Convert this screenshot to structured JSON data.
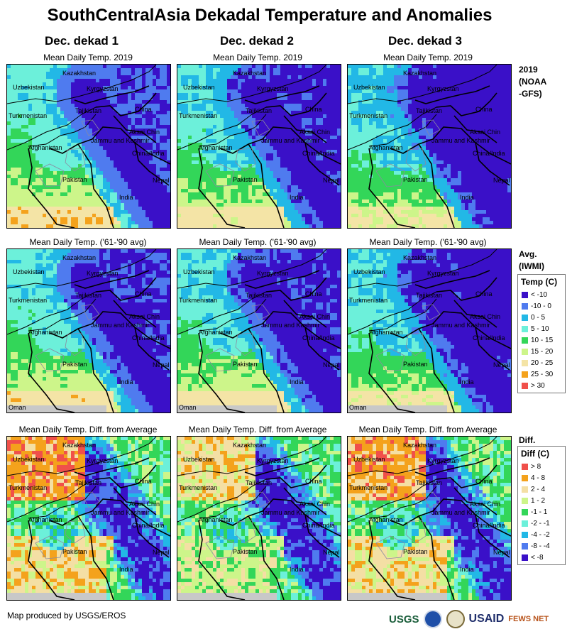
{
  "title": "SouthCentralAsia Dekadal Temperature and Anomalies",
  "columns": [
    "Dec. dekad 1",
    "Dec. dekad 2",
    "Dec. dekad 3"
  ],
  "row_captions": {
    "current": "Mean Daily Temp. 2019",
    "average": "Mean Daily Temp. ('61-'90 avg)",
    "difference": "Mean Daily Temp. Diff. from Average"
  },
  "side_labels": {
    "current_l1": "2019",
    "current_l2": "(NOAA",
    "current_l3": "-GFS)",
    "average_l1": "Avg.",
    "average_l2": "(IWMI)",
    "difference_l1": "Diff."
  },
  "map_labels": {
    "kazakhstan": "Kazakhstan",
    "uzbekistan": "Uzbekistan",
    "kyrgyzstan": "Kyrgyzstan",
    "turkmenistan": "Turkmenistan",
    "tajikistan": "Tajikistan",
    "china": "China",
    "aksai_chin": "Aksai Chin",
    "jammu_kashmir": "Jammu and Kashmir",
    "afghanistan": "Afghanistan",
    "china_india": "China/India",
    "pakistan": "Pakistan",
    "nepal": "Nepal",
    "india": "India",
    "oman": "Oman"
  },
  "temp_legend": {
    "title": "Temp (C)",
    "items": [
      {
        "label": "< -10",
        "color": "#3a10c8"
      },
      {
        "label": "-10 - 0",
        "color": "#4f7bef"
      },
      {
        "label": "0 - 5",
        "color": "#22b8e6"
      },
      {
        "label": "5 - 10",
        "color": "#6cf0da"
      },
      {
        "label": "10 - 15",
        "color": "#33d659"
      },
      {
        "label": "15 - 20",
        "color": "#cdf58a"
      },
      {
        "label": "20 - 25",
        "color": "#f4e4a6"
      },
      {
        "label": "25 - 30",
        "color": "#f4a21c"
      },
      {
        "label": "> 30",
        "color": "#f0504a"
      }
    ]
  },
  "diff_legend": {
    "title": "Diff (C)",
    "items": [
      {
        "label": "> 8",
        "color": "#f0504a"
      },
      {
        "label": "4 - 8",
        "color": "#f4a21c"
      },
      {
        "label": "2 - 4",
        "color": "#f4dfa4"
      },
      {
        "label": "1 - 2",
        "color": "#cdf58a"
      },
      {
        "label": "-1 - 1",
        "color": "#33d659"
      },
      {
        "label": "-2 - -1",
        "color": "#6cf0da"
      },
      {
        "label": "-4 - -2",
        "color": "#22b8e6"
      },
      {
        "label": "-8 - -4",
        "color": "#4f7bef"
      },
      {
        "label": "< -8",
        "color": "#3a10c8"
      }
    ]
  },
  "footer": "Map produced by USGS/EROS",
  "logos": {
    "usgs": "USGS",
    "usaid": "USAID",
    "fews": "FEWS NET"
  }
}
